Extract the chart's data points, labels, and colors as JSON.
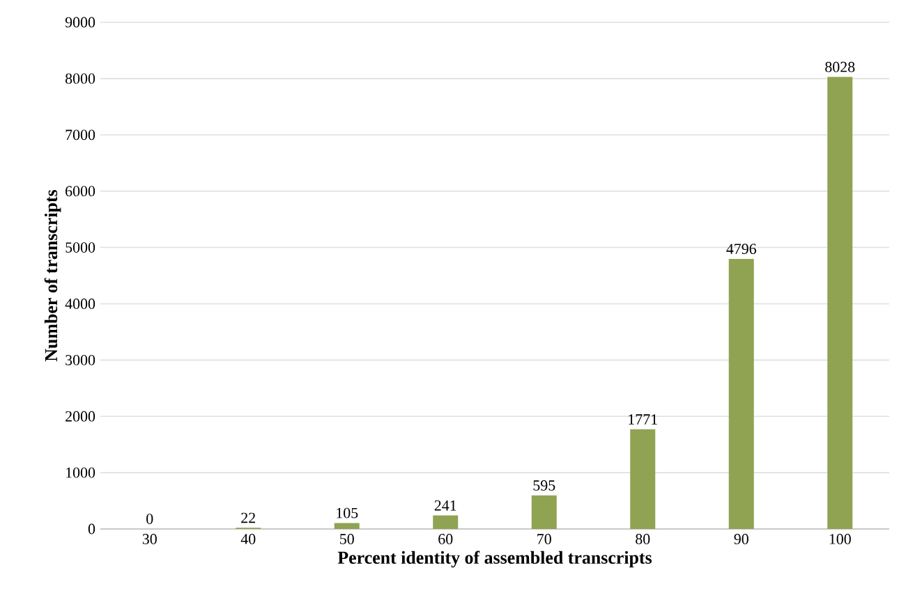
{
  "chart_data": {
    "type": "bar",
    "xlabel": "Percent identity of assembled transcripts",
    "ylabel": "Number of transcripts",
    "categories": [
      "30",
      "40",
      "50",
      "60",
      "70",
      "80",
      "90",
      "100"
    ],
    "values": [
      0,
      22,
      105,
      241,
      595,
      1771,
      4796,
      8028
    ],
    "color": "#8fa352",
    "ylim": [
      0,
      9000
    ],
    "yticks": [
      0,
      1000,
      2000,
      3000,
      4000,
      5000,
      6000,
      7000,
      8000,
      9000
    ],
    "grid": "y",
    "data_labels": true
  }
}
